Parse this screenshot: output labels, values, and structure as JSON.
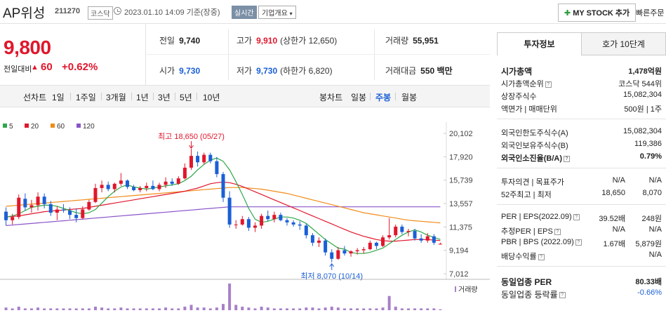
{
  "header": {
    "name": "AP위성",
    "code": "211270",
    "market": "코스닥",
    "datetime": "2023.01.10 14:09 기준(장중)",
    "realtime": "실시간",
    "company_info": "기업개요",
    "mystock": "MY STOCK 추가",
    "quick_order": "빠른주문"
  },
  "price": {
    "current": "9,800",
    "change_label": "전일대비",
    "change": "60",
    "change_pct": "+0.62%",
    "up_color": "#e0172c",
    "down_color": "#1a5fd6"
  },
  "stats": {
    "prev_label": "전일",
    "prev": "9,740",
    "high_label": "고가",
    "high": "9,910",
    "high_limit": "(상한가 12,650)",
    "volume_label": "거래량",
    "volume": "55,951",
    "open_label": "시가",
    "open": "9,730",
    "low_label": "저가",
    "low": "9,730",
    "low_limit": "(하한가 6,820)",
    "amount_label": "거래대금",
    "amount": "550 백만"
  },
  "toolbar": {
    "line_chart": "선차트",
    "periods": [
      "1일",
      "1주일",
      "3개월",
      "1년",
      "3년",
      "5년",
      "10년"
    ],
    "candle_chart": "봉차트",
    "candles": [
      "일봉",
      "주봉",
      "월봉"
    ],
    "active_candle": "주봉"
  },
  "chart_data": {
    "type": "candlestick",
    "legend": [
      {
        "name": "5",
        "color": "#2ea84a"
      },
      {
        "name": "20",
        "color": "#e0172c"
      },
      {
        "name": "60",
        "color": "#f08c1a"
      },
      {
        "name": "120",
        "color": "#8a55c8"
      }
    ],
    "y_ticks": [
      "20,102",
      "17,920",
      "15,739",
      "13,557",
      "11,375",
      "9,194",
      "7,012"
    ],
    "ylim": [
      7012,
      20102
    ],
    "max_label": "최고 18,650 (05/27)",
    "min_label": "최저 8,070 (10/14)",
    "volume_label": "거래량",
    "candles": [
      [
        12800,
        13200,
        11500,
        12000
      ],
      [
        12000,
        12600,
        11600,
        12300
      ],
      [
        12300,
        14400,
        12100,
        14100
      ],
      [
        14000,
        14500,
        12900,
        13200
      ],
      [
        13200,
        13900,
        12700,
        13400
      ],
      [
        13400,
        14600,
        12900,
        14200
      ],
      [
        14200,
        14500,
        13100,
        13500
      ],
      [
        13500,
        13800,
        12400,
        12700
      ],
      [
        12700,
        13300,
        12000,
        13000
      ],
      [
        13000,
        13500,
        12700,
        12900
      ],
      [
        12900,
        13200,
        12100,
        12500
      ],
      [
        12500,
        13100,
        11800,
        12200
      ],
      [
        12200,
        13300,
        12100,
        13000
      ],
      [
        13000,
        13900,
        12900,
        13700
      ],
      [
        13700,
        15400,
        13600,
        15000
      ],
      [
        15000,
        15700,
        14600,
        15300
      ],
      [
        15300,
        15600,
        14700,
        14900
      ],
      [
        14900,
        15500,
        14600,
        15400
      ],
      [
        15400,
        16400,
        15200,
        15700
      ],
      [
        15700,
        15800,
        14900,
        15100
      ],
      [
        15100,
        15300,
        14700,
        14800
      ],
      [
        14800,
        15200,
        14600,
        15000
      ],
      [
        15000,
        15500,
        14700,
        15200
      ],
      [
        15200,
        15700,
        14800,
        14900
      ],
      [
        14900,
        15500,
        14700,
        15300
      ],
      [
        15300,
        16000,
        15000,
        15600
      ],
      [
        15600,
        15900,
        15200,
        15400
      ],
      [
        15400,
        16100,
        15300,
        15900
      ],
      [
        15900,
        17300,
        15800,
        16900
      ],
      [
        16900,
        18650,
        16700,
        18000
      ],
      [
        18000,
        18400,
        17000,
        17400
      ],
      [
        17400,
        18300,
        17200,
        18100
      ],
      [
        18100,
        18300,
        17300,
        17500
      ],
      [
        17500,
        17900,
        16000,
        16300
      ],
      [
        16300,
        16500,
        13700,
        14100
      ],
      [
        14100,
        14700,
        11300,
        11600
      ],
      [
        11600,
        12000,
        11200,
        11600
      ],
      [
        11600,
        12400,
        11500,
        12100
      ],
      [
        12100,
        12300,
        11000,
        11300
      ],
      [
        11300,
        11800,
        10900,
        11500
      ],
      [
        11500,
        12600,
        11200,
        12400
      ],
      [
        12400,
        12900,
        11900,
        12100
      ],
      [
        12100,
        12800,
        11800,
        12500
      ],
      [
        12500,
        12700,
        11900,
        12000
      ],
      [
        12000,
        12200,
        11500,
        11800
      ],
      [
        11800,
        12000,
        11400,
        11600
      ],
      [
        11600,
        11900,
        11100,
        11500
      ],
      [
        11500,
        11700,
        10300,
        10600
      ],
      [
        10600,
        10800,
        9600,
        9900
      ],
      [
        9900,
        10400,
        9500,
        10100
      ],
      [
        10100,
        10300,
        8700,
        9000
      ],
      [
        9000,
        9300,
        8070,
        8400
      ],
      [
        8400,
        9500,
        8300,
        9200
      ],
      [
        9200,
        9600,
        8700,
        8900
      ],
      [
        8900,
        9200,
        8600,
        9100
      ],
      [
        9100,
        9400,
        8800,
        9200
      ],
      [
        9200,
        9500,
        8900,
        9300
      ],
      [
        9300,
        10100,
        9200,
        9900
      ],
      [
        9900,
        10000,
        9300,
        9600
      ],
      [
        9600,
        10600,
        9500,
        10400
      ],
      [
        10400,
        12200,
        10200,
        10600
      ],
      [
        10600,
        11600,
        10400,
        11400
      ],
      [
        11400,
        11600,
        10700,
        10900
      ],
      [
        10900,
        11200,
        10500,
        11000
      ],
      [
        11000,
        11200,
        10100,
        10300
      ],
      [
        10300,
        10700,
        9900,
        10100
      ],
      [
        10100,
        10800,
        9900,
        10500
      ],
      [
        10500,
        10700,
        9700,
        9900
      ],
      [
        9730,
        9910,
        9730,
        9800
      ]
    ],
    "ma5": [
      12300,
      12400,
      12600,
      12900,
      13200,
      13300,
      13400,
      13400,
      13300,
      13100,
      12900,
      12700,
      12600,
      12700,
      13000,
      13600,
      14200,
      14700,
      15100,
      15300,
      15100,
      15000,
      14900,
      15000,
      15100,
      15200,
      15300,
      15400,
      15700,
      16100,
      16700,
      17200,
      17600,
      17800,
      17500,
      16700,
      15600,
      14400,
      13100,
      12100,
      11800,
      11900,
      12100,
      12300,
      12300,
      12200,
      12000,
      11700,
      11200,
      10700,
      10200,
      9800,
      9400,
      9300,
      9000,
      8900,
      8900,
      9000,
      9200,
      9400,
      9800,
      10200,
      10600,
      10900,
      11100,
      10900,
      10600,
      10400,
      10200
    ],
    "ma20": [
      12300,
      12350,
      12400,
      12500,
      12600,
      12700,
      12800,
      12850,
      12900,
      12950,
      13000,
      13050,
      13100,
      13200,
      13300,
      13400,
      13500,
      13600,
      13700,
      13800,
      13900,
      14000,
      14100,
      14200,
      14300,
      14400,
      14500,
      14600,
      14700,
      14850,
      15000,
      15200,
      15400,
      15500,
      15550,
      15500,
      15350,
      15150,
      14900,
      14650,
      14400,
      14150,
      13900,
      13650,
      13400,
      13150,
      12900,
      12650,
      12400,
      12150,
      11900,
      11650,
      11400,
      11150,
      10900,
      10700,
      10500,
      10350,
      10200,
      10100,
      10050,
      10050,
      10100,
      10150,
      10200,
      10200,
      10200,
      10150,
      10100
    ],
    "ma60": [
      13300,
      13350,
      13400,
      13450,
      13500,
      13550,
      13600,
      13650,
      13700,
      13750,
      13800,
      13850,
      13900,
      13950,
      14000,
      14050,
      14100,
      14150,
      14200,
      14250,
      14300,
      14350,
      14400,
      14450,
      14500,
      14550,
      14600,
      14650,
      14700,
      14750,
      14800,
      14850,
      14900,
      14950,
      15000,
      15050,
      15050,
      15050,
      15000,
      14950,
      14900,
      14800,
      14700,
      14600,
      14500,
      14350,
      14200,
      14050,
      13900,
      13750,
      13600,
      13450,
      13300,
      13150,
      13000,
      12850,
      12700,
      12600,
      12500,
      12400,
      12300,
      12200,
      12100,
      12000,
      11950,
      11900,
      11850,
      11800,
      11750
    ],
    "ma120": [
      11500,
      11550,
      11600,
      11650,
      11700,
      11750,
      11800,
      11850,
      11900,
      11950,
      12000,
      12050,
      12100,
      12150,
      12200,
      12250,
      12300,
      12350,
      12400,
      12450,
      12500,
      12550,
      12600,
      12650,
      12700,
      12750,
      12800,
      12850,
      12900,
      12950,
      13000,
      13050,
      13100,
      13150,
      13200,
      13250,
      13250,
      13250,
      13250,
      13250,
      13250,
      13250,
      13250,
      13250,
      13250,
      13250,
      13250,
      13250,
      13250,
      13250,
      13250,
      13250,
      13250,
      13250,
      13250,
      13250,
      13250,
      13250,
      13250,
      13250,
      13250,
      13250,
      13250,
      13250,
      13250,
      13250,
      13250,
      13250,
      13250
    ],
    "volume": [
      3,
      2,
      4,
      2,
      2,
      3,
      2,
      2,
      2,
      2,
      2,
      2,
      2,
      2,
      4,
      3,
      2,
      2,
      3,
      2,
      2,
      2,
      2,
      2,
      2,
      3,
      2,
      2,
      4,
      6,
      3,
      3,
      2,
      3,
      7,
      30,
      6,
      4,
      3,
      2,
      4,
      3,
      2,
      2,
      2,
      2,
      2,
      3,
      3,
      2,
      3,
      4,
      3,
      2,
      2,
      2,
      2,
      2,
      2,
      3,
      16,
      4,
      2,
      2,
      2,
      2,
      2,
      2,
      1
    ]
  },
  "panel": {
    "tab_info": "투자정보",
    "tab_quote": "호가 10단계",
    "market_cap_label": "시가총액",
    "market_cap": "1,478억원",
    "cap_rank_label": "시가총액순위",
    "cap_rank": "코스닥 544위",
    "shares_label": "상장주식수",
    "shares": "15,082,304",
    "par_label": "액면가 | 매매단위",
    "par": "500원 | 1주",
    "foreign_limit_label": "외국인한도주식수(A)",
    "foreign_limit": "15,082,304",
    "foreign_hold_label": "외국인보유주식수(B)",
    "foreign_hold": "119,386",
    "foreign_ratio_label": "외국인소진율(B/A)",
    "foreign_ratio": "0.79%",
    "opinion_label": "투자의견 | 목표주가",
    "opinion": "N/A",
    "target": "N/A",
    "w52_label": "52주최고 | 최저",
    "w52_high": "18,650",
    "w52_low": "8,070",
    "per_label": "PER | EPS(2022.09)",
    "per": "39.52배",
    "eps": "248원",
    "est_per_label": "추정PER | EPS",
    "est_per": "N/A",
    "est_eps": "N/A",
    "pbr_label": "PBR | BPS (2022.09)",
    "pbr": "1.67배",
    "bps": "5,879원",
    "div_label": "배당수익률",
    "div": "N/A",
    "sector_per_label": "동일업종 PER",
    "sector_per": "80.33배",
    "sector_rate_label": "동일업종 등락률",
    "sector_rate": "-0.66%"
  }
}
